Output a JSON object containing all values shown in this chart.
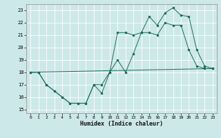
{
  "xlabel": "Humidex (Indice chaleur)",
  "bg_color": "#cde8e8",
  "grid_color": "#ffffff",
  "line_color": "#1a6b5a",
  "xlim": [
    -0.5,
    23.5
  ],
  "ylim": [
    14.7,
    23.5
  ],
  "yticks": [
    15,
    16,
    17,
    18,
    19,
    20,
    21,
    22,
    23
  ],
  "xticks": [
    0,
    1,
    2,
    3,
    4,
    5,
    6,
    7,
    8,
    9,
    10,
    11,
    12,
    13,
    14,
    15,
    16,
    17,
    18,
    19,
    20,
    21,
    22,
    23
  ],
  "line1_x": [
    0,
    1,
    2,
    3,
    4,
    5,
    6,
    7,
    8,
    9,
    10,
    11,
    12,
    13,
    14,
    15,
    16,
    17,
    18,
    19,
    20,
    21,
    22,
    23
  ],
  "line1_y": [
    18.0,
    18.0,
    17.0,
    16.5,
    16.0,
    15.5,
    15.5,
    15.5,
    17.0,
    16.3,
    18.0,
    21.2,
    21.2,
    21.0,
    21.2,
    21.2,
    21.0,
    22.0,
    21.8,
    21.8,
    19.8,
    18.5,
    18.3,
    18.3
  ],
  "line2_x": [
    0,
    1,
    2,
    3,
    4,
    5,
    6,
    7,
    8,
    9,
    10,
    11,
    12,
    13,
    14,
    15,
    16,
    17,
    18,
    19,
    20,
    21,
    22,
    23
  ],
  "line2_y": [
    18.0,
    18.0,
    17.0,
    16.5,
    16.0,
    15.5,
    15.5,
    15.5,
    17.0,
    17.0,
    18.0,
    19.0,
    18.0,
    19.5,
    21.2,
    22.5,
    21.8,
    22.8,
    23.2,
    22.6,
    22.5,
    19.8,
    18.5,
    18.3
  ],
  "line3_x": [
    0,
    23
  ],
  "line3_y": [
    18.0,
    18.3
  ]
}
